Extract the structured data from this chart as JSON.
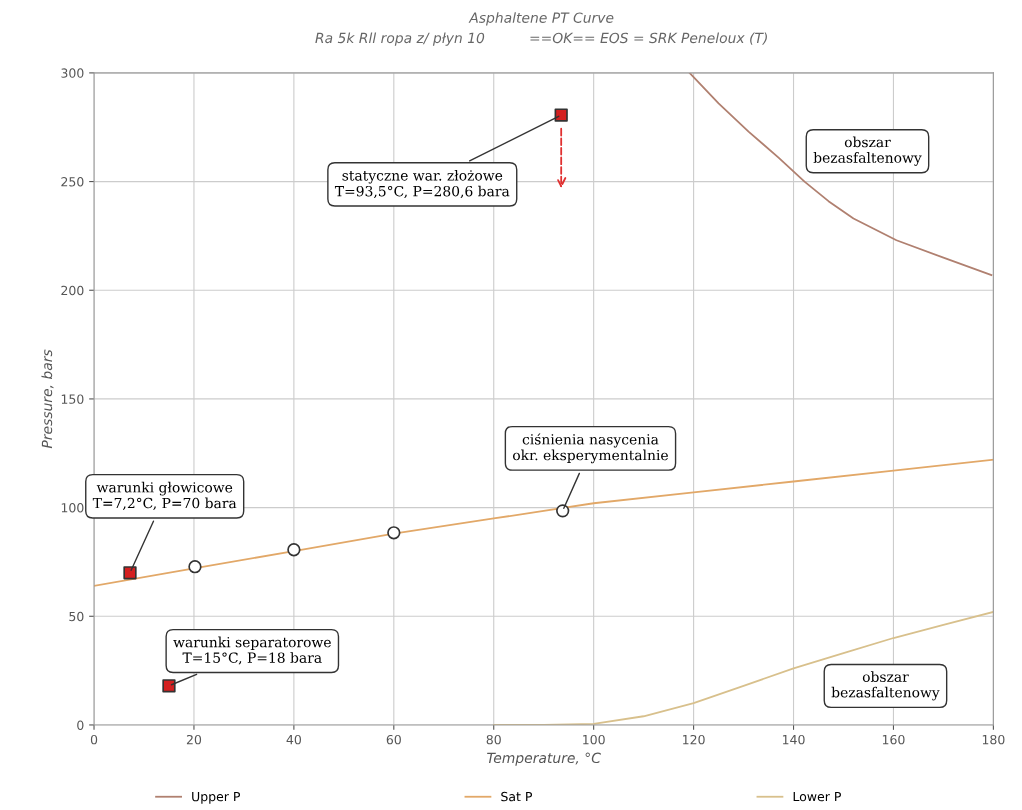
{
  "chart_data": {
    "type": "line",
    "title": "Asphaltene PT Curve",
    "subtitle": "Ra 5k Rll ropa z/ płyn 10          ==OK== EOS = SRK Peneloux (T)",
    "xlabel": "Temperature, °C",
    "ylabel": "Pressure, bars",
    "xlim": [
      0,
      180
    ],
    "xticks": [
      0,
      20,
      40,
      60,
      80,
      100,
      120,
      140,
      160,
      180
    ],
    "ylim": [
      0,
      300
    ],
    "yticks": [
      0,
      50,
      100,
      150,
      200,
      250,
      300
    ],
    "grid": true,
    "legend": "bottom",
    "series": [
      {
        "name": "Upper P",
        "color": "#b08070",
        "marker": "none",
        "x": [
          119.2,
          125,
          131,
          137,
          142.2,
          147,
          152,
          160.6,
          170,
          179.6
        ],
        "values": [
          300,
          286,
          273,
          261,
          250,
          241,
          233,
          223,
          215,
          207
        ]
      },
      {
        "name": "Sat P",
        "color": "#e2a868",
        "marker": "none",
        "x": [
          0,
          20,
          40,
          60,
          80,
          100,
          120,
          140,
          160,
          180
        ],
        "values": [
          64,
          72,
          80,
          88,
          95,
          102,
          107,
          112,
          117,
          122
        ]
      },
      {
        "name": "Lower P",
        "color": "#d8c08c",
        "marker": "none",
        "x": [
          80,
          90,
          100,
          110,
          120,
          130,
          140,
          150,
          160,
          170,
          180
        ],
        "values": [
          0,
          0,
          0.5,
          4,
          10,
          18,
          26,
          33,
          40,
          46,
          52
        ]
      },
      {
        "type": "scatter",
        "color": "#d42020",
        "marker": "square",
        "x": [
          7.2,
          15,
          93.5
        ],
        "values": [
          70,
          18,
          280.6
        ]
      },
      {
        "type": "scatter",
        "color": "#ffffff",
        "marker": "circle",
        "x": [
          20.2,
          40,
          60,
          93.8
        ],
        "values": [
          72.8,
          80.6,
          88.4,
          98.5
        ]
      }
    ],
    "annotations": [
      {
        "text": "warunki głowicowe\nT=7,2°C, P=70 bara",
        "x": 7.2,
        "y": 70
      },
      {
        "text": "warunki separatorowe\nT=15°C, P=18 bara",
        "x": 15,
        "y": 18
      },
      {
        "text": "statyczne war. złożowe\nT=93,5°C, P=280,6 bara",
        "x": 93.5,
        "y": 280.6
      },
      {
        "text": "ciśnienia nasycenia\nokr. eksperymentalnie",
        "x": 93.8,
        "y": 98.5
      },
      "obszar\nbezasfaltenowy",
      "obszar\nbezasfaltenowy"
    ]
  }
}
